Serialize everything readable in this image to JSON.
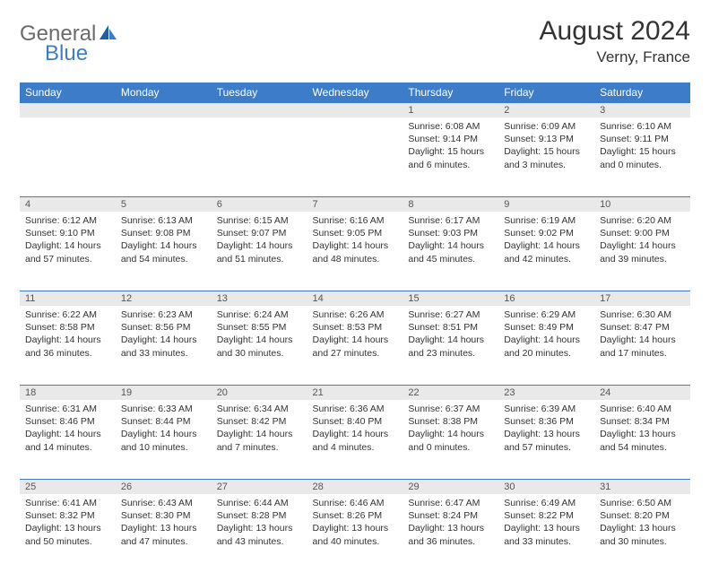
{
  "logo": {
    "text_gray": "General",
    "text_blue": "Blue"
  },
  "title": "August 2024",
  "location": "Verny, France",
  "dayHeaders": [
    "Sunday",
    "Monday",
    "Tuesday",
    "Wednesday",
    "Thursday",
    "Friday",
    "Saturday"
  ],
  "colors": {
    "header_bg": "#3d7cc9",
    "header_text": "#ffffff",
    "daynum_bg": "#e9e9e9",
    "border": "#3d7cc9",
    "logo_gray": "#6b6b6b",
    "logo_blue": "#3d7cc9"
  },
  "weeks": [
    [
      null,
      null,
      null,
      null,
      {
        "n": "1",
        "sr": "6:08 AM",
        "ss": "9:14 PM",
        "dl": "15 hours and 6 minutes."
      },
      {
        "n": "2",
        "sr": "6:09 AM",
        "ss": "9:13 PM",
        "dl": "15 hours and 3 minutes."
      },
      {
        "n": "3",
        "sr": "6:10 AM",
        "ss": "9:11 PM",
        "dl": "15 hours and 0 minutes."
      }
    ],
    [
      {
        "n": "4",
        "sr": "6:12 AM",
        "ss": "9:10 PM",
        "dl": "14 hours and 57 minutes."
      },
      {
        "n": "5",
        "sr": "6:13 AM",
        "ss": "9:08 PM",
        "dl": "14 hours and 54 minutes."
      },
      {
        "n": "6",
        "sr": "6:15 AM",
        "ss": "9:07 PM",
        "dl": "14 hours and 51 minutes."
      },
      {
        "n": "7",
        "sr": "6:16 AM",
        "ss": "9:05 PM",
        "dl": "14 hours and 48 minutes."
      },
      {
        "n": "8",
        "sr": "6:17 AM",
        "ss": "9:03 PM",
        "dl": "14 hours and 45 minutes."
      },
      {
        "n": "9",
        "sr": "6:19 AM",
        "ss": "9:02 PM",
        "dl": "14 hours and 42 minutes."
      },
      {
        "n": "10",
        "sr": "6:20 AM",
        "ss": "9:00 PM",
        "dl": "14 hours and 39 minutes."
      }
    ],
    [
      {
        "n": "11",
        "sr": "6:22 AM",
        "ss": "8:58 PM",
        "dl": "14 hours and 36 minutes."
      },
      {
        "n": "12",
        "sr": "6:23 AM",
        "ss": "8:56 PM",
        "dl": "14 hours and 33 minutes."
      },
      {
        "n": "13",
        "sr": "6:24 AM",
        "ss": "8:55 PM",
        "dl": "14 hours and 30 minutes."
      },
      {
        "n": "14",
        "sr": "6:26 AM",
        "ss": "8:53 PM",
        "dl": "14 hours and 27 minutes."
      },
      {
        "n": "15",
        "sr": "6:27 AM",
        "ss": "8:51 PM",
        "dl": "14 hours and 23 minutes."
      },
      {
        "n": "16",
        "sr": "6:29 AM",
        "ss": "8:49 PM",
        "dl": "14 hours and 20 minutes."
      },
      {
        "n": "17",
        "sr": "6:30 AM",
        "ss": "8:47 PM",
        "dl": "14 hours and 17 minutes."
      }
    ],
    [
      {
        "n": "18",
        "sr": "6:31 AM",
        "ss": "8:46 PM",
        "dl": "14 hours and 14 minutes."
      },
      {
        "n": "19",
        "sr": "6:33 AM",
        "ss": "8:44 PM",
        "dl": "14 hours and 10 minutes."
      },
      {
        "n": "20",
        "sr": "6:34 AM",
        "ss": "8:42 PM",
        "dl": "14 hours and 7 minutes."
      },
      {
        "n": "21",
        "sr": "6:36 AM",
        "ss": "8:40 PM",
        "dl": "14 hours and 4 minutes."
      },
      {
        "n": "22",
        "sr": "6:37 AM",
        "ss": "8:38 PM",
        "dl": "14 hours and 0 minutes."
      },
      {
        "n": "23",
        "sr": "6:39 AM",
        "ss": "8:36 PM",
        "dl": "13 hours and 57 minutes."
      },
      {
        "n": "24",
        "sr": "6:40 AM",
        "ss": "8:34 PM",
        "dl": "13 hours and 54 minutes."
      }
    ],
    [
      {
        "n": "25",
        "sr": "6:41 AM",
        "ss": "8:32 PM",
        "dl": "13 hours and 50 minutes."
      },
      {
        "n": "26",
        "sr": "6:43 AM",
        "ss": "8:30 PM",
        "dl": "13 hours and 47 minutes."
      },
      {
        "n": "27",
        "sr": "6:44 AM",
        "ss": "8:28 PM",
        "dl": "13 hours and 43 minutes."
      },
      {
        "n": "28",
        "sr": "6:46 AM",
        "ss": "8:26 PM",
        "dl": "13 hours and 40 minutes."
      },
      {
        "n": "29",
        "sr": "6:47 AM",
        "ss": "8:24 PM",
        "dl": "13 hours and 36 minutes."
      },
      {
        "n": "30",
        "sr": "6:49 AM",
        "ss": "8:22 PM",
        "dl": "13 hours and 33 minutes."
      },
      {
        "n": "31",
        "sr": "6:50 AM",
        "ss": "8:20 PM",
        "dl": "13 hours and 30 minutes."
      }
    ]
  ],
  "labels": {
    "sunrise": "Sunrise: ",
    "sunset": "Sunset: ",
    "daylight": "Daylight: "
  }
}
